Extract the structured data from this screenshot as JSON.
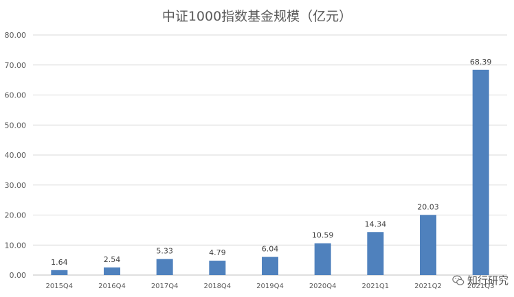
{
  "chart_data": {
    "type": "bar",
    "title": "中证1000指数基金规模（亿元）",
    "categories": [
      "2015Q4",
      "2016Q4",
      "2017Q4",
      "2018Q4",
      "2019Q4",
      "2020Q4",
      "2021Q1",
      "2021Q2",
      "2021Q3"
    ],
    "values": [
      1.64,
      2.54,
      5.33,
      4.79,
      6.04,
      10.59,
      14.34,
      20.03,
      68.39
    ],
    "value_labels": [
      "1.64",
      "2.54",
      "5.33",
      "4.79",
      "6.04",
      "10.59",
      "14.34",
      "20.03",
      "68.39"
    ],
    "ylim": [
      0,
      80
    ],
    "yticks": [
      "0.00",
      "10.00",
      "20.00",
      "30.00",
      "40.00",
      "50.00",
      "60.00",
      "70.00",
      "80.00"
    ],
    "grid": true,
    "legend": "none",
    "bar_color": "#4f81bd"
  },
  "watermark": {
    "text": "知行研究",
    "icon": "wechat-icon"
  }
}
